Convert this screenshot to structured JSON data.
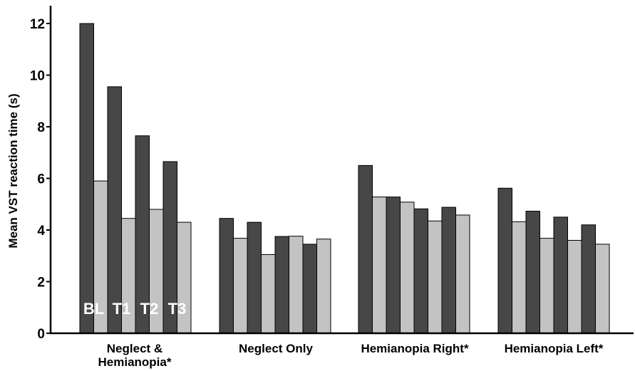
{
  "chart_data": {
    "type": "bar",
    "ylabel": "Mean VST reaction time (s)",
    "ylim": [
      0,
      12.6
    ],
    "yticks": [
      "0",
      "2",
      "4",
      "6",
      "8",
      "10",
      "12"
    ],
    "grid": false,
    "colors": {
      "dark": "#474747",
      "light": "#c3c3c3"
    },
    "time_labels": [
      "BL",
      "T1",
      "T2",
      "T3"
    ],
    "groups": [
      {
        "label_lines": [
          "Neglect &",
          "Hemianopia*"
        ],
        "values": [
          12.0,
          5.9,
          9.55,
          4.45,
          7.65,
          4.8,
          6.65,
          4.3
        ]
      },
      {
        "label_lines": [
          "Neglect Only"
        ],
        "values": [
          4.45,
          3.68,
          4.3,
          3.05,
          3.75,
          3.76,
          3.45,
          3.65
        ]
      },
      {
        "label_lines": [
          "Hemianopia Right*"
        ],
        "values": [
          6.5,
          5.28,
          5.28,
          5.08,
          4.82,
          4.35,
          4.88,
          4.58
        ]
      },
      {
        "label_lines": [
          "Hemianopia Left*"
        ],
        "values": [
          5.62,
          4.32,
          4.73,
          3.68,
          4.5,
          3.6,
          4.2,
          3.45
        ]
      }
    ]
  }
}
